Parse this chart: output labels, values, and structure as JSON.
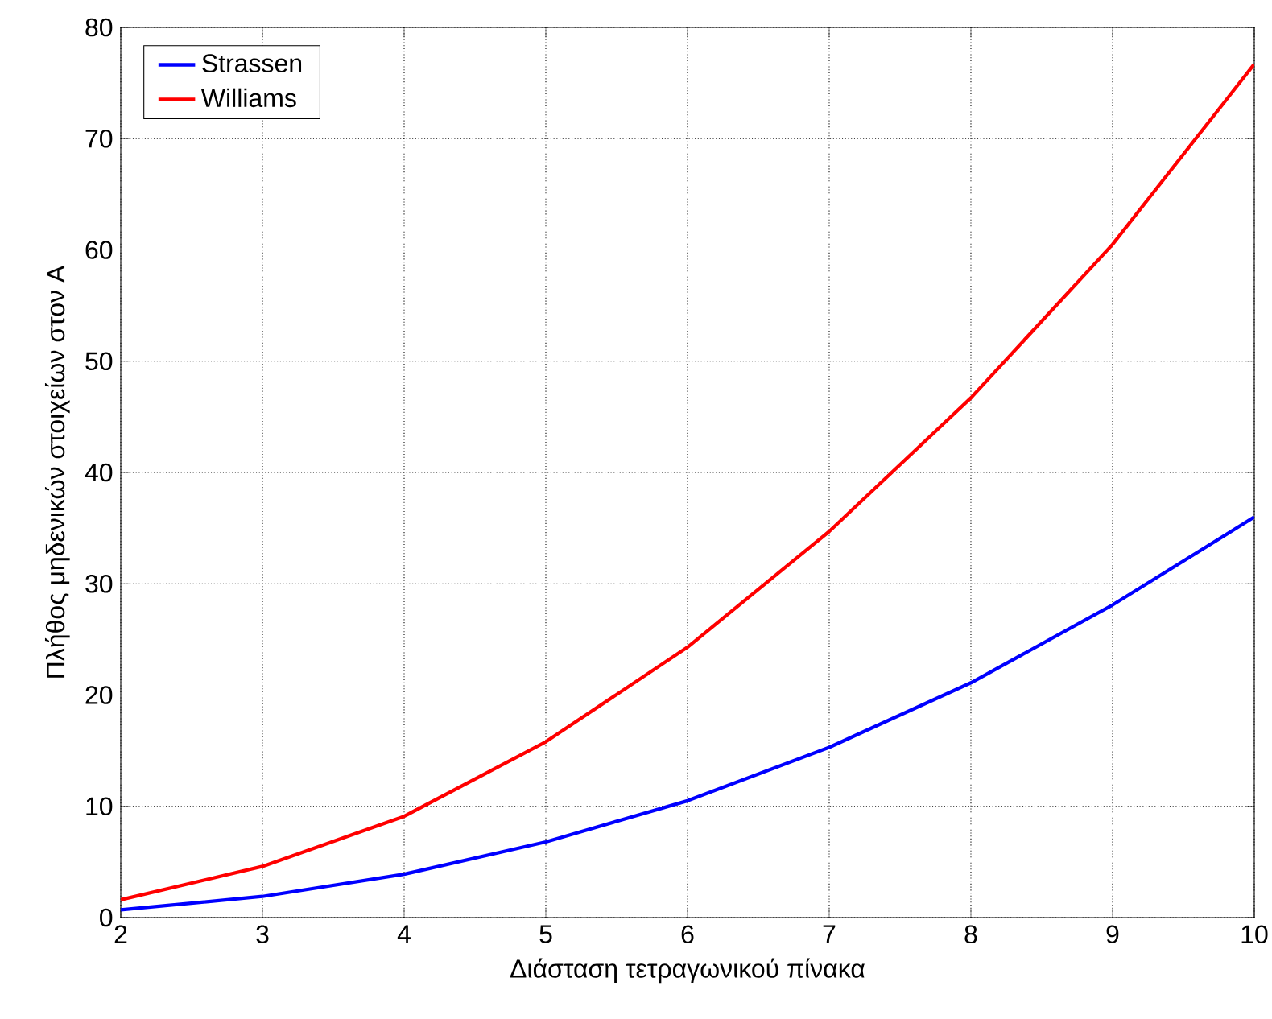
{
  "chart_data": {
    "type": "line",
    "xlabel": "Διάσταση τετραγωνικού πίνακα",
    "ylabel": "Πλήθος μηδενικών στοιχείων στον A",
    "x": [
      2,
      3,
      4,
      5,
      6,
      7,
      8,
      9,
      10
    ],
    "series": [
      {
        "name": "Strassen",
        "color": "#0000ff",
        "values": [
          0.7,
          1.9,
          3.9,
          6.8,
          10.5,
          15.3,
          21.1,
          28.1,
          36.0
        ]
      },
      {
        "name": "Williams",
        "color": "#ff0000",
        "values": [
          1.6,
          4.6,
          9.1,
          15.8,
          24.3,
          34.7,
          46.7,
          60.5,
          76.7
        ]
      }
    ],
    "xlim": [
      2,
      10
    ],
    "ylim": [
      0,
      80
    ],
    "xticks": [
      2,
      3,
      4,
      5,
      6,
      7,
      8,
      9,
      10
    ],
    "yticks": [
      0,
      10,
      20,
      30,
      40,
      50,
      60,
      70,
      80
    ],
    "grid": true,
    "legend": "top left",
    "marker": "none",
    "line_style": "solid"
  }
}
